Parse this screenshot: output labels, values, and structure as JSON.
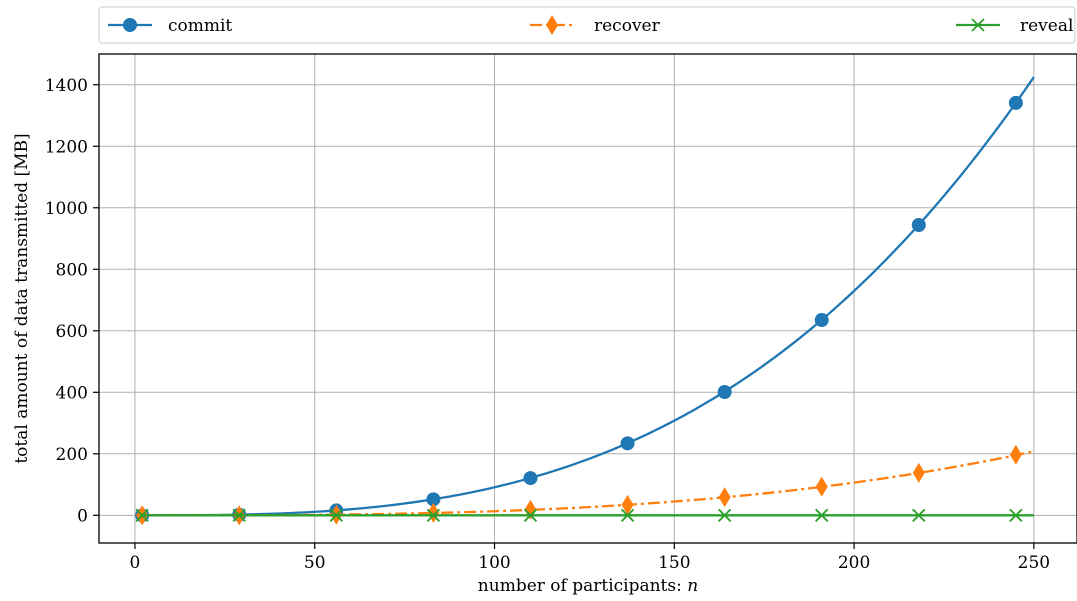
{
  "chart_data": {
    "type": "line",
    "title": "",
    "xlabel": "number of participants: ",
    "xlabel_var": "n",
    "ylabel": "total amount of data transmitted [MB]",
    "xlim": [
      -10,
      262
    ],
    "ylim": [
      -90,
      1500
    ],
    "xticks": [
      0,
      50,
      100,
      150,
      200,
      250
    ],
    "yticks": [
      0,
      200,
      400,
      600,
      800,
      1000,
      1200,
      1400
    ],
    "grid": true,
    "legend_position": "top, above plot",
    "series": [
      {
        "name": "commit",
        "color": "#1f77b4",
        "marker": "circle",
        "line_style": "solid",
        "curve": {
          "coefficient": 9.12e-05,
          "exponent": 3,
          "x_max": 250
        },
        "markers": [
          {
            "x": 2,
            "y": 0
          },
          {
            "x": 29,
            "y": 2
          },
          {
            "x": 56,
            "y": 16
          },
          {
            "x": 83,
            "y": 52
          },
          {
            "x": 110,
            "y": 121
          },
          {
            "x": 137,
            "y": 234
          },
          {
            "x": 164,
            "y": 401
          },
          {
            "x": 191,
            "y": 635
          },
          {
            "x": 218,
            "y": 944
          },
          {
            "x": 245,
            "y": 1341
          }
        ]
      },
      {
        "name": "recover",
        "color": "#ff7f0e",
        "marker": "diamond",
        "line_style": "dashdot",
        "curve": {
          "coefficient": 1.33e-05,
          "exponent": 3,
          "x_max": 250
        },
        "markers": [
          {
            "x": 2,
            "y": 0
          },
          {
            "x": 29,
            "y": 0
          },
          {
            "x": 56,
            "y": 2
          },
          {
            "x": 83,
            "y": 8
          },
          {
            "x": 110,
            "y": 18
          },
          {
            "x": 137,
            "y": 34
          },
          {
            "x": 164,
            "y": 59
          },
          {
            "x": 191,
            "y": 93
          },
          {
            "x": 218,
            "y": 138
          },
          {
            "x": 245,
            "y": 197
          }
        ]
      },
      {
        "name": "reveal",
        "color": "#2ca02c",
        "marker": "x",
        "line_style": "solid",
        "curve": {
          "coefficient": 0.0,
          "exponent": 1,
          "x_max": 250
        },
        "markers": [
          {
            "x": 2,
            "y": 0
          },
          {
            "x": 29,
            "y": 0
          },
          {
            "x": 56,
            "y": 0
          },
          {
            "x": 83,
            "y": 0
          },
          {
            "x": 110,
            "y": 0
          },
          {
            "x": 137,
            "y": 0
          },
          {
            "x": 164,
            "y": 0
          },
          {
            "x": 191,
            "y": 0
          },
          {
            "x": 218,
            "y": 0
          },
          {
            "x": 245,
            "y": 0
          }
        ]
      }
    ]
  }
}
